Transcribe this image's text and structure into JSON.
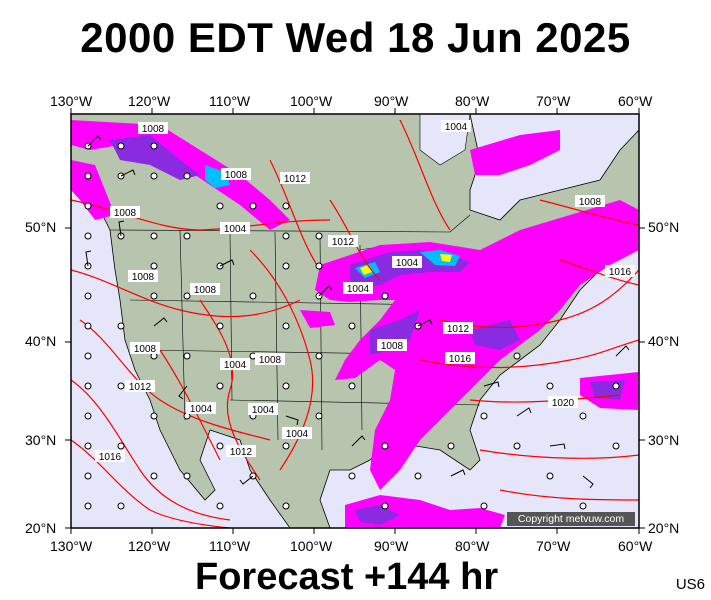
{
  "header": {
    "title": "2000 EDT Wed 18 Jun 2025"
  },
  "footer": {
    "forecast": "Forecast +144 hr",
    "region": "US6"
  },
  "map": {
    "lon_labels": [
      "130°W",
      "120°W",
      "110°W",
      "100°W",
      "90°W",
      "80°W",
      "70°W",
      "60°W"
    ],
    "lat_labels": [
      "50°N",
      "40°N",
      "30°N",
      "20°N"
    ],
    "isobar_labels": [
      "1008",
      "1008",
      "1012",
      "1004",
      "1004",
      "1008",
      "1008",
      "1004",
      "1012",
      "1008",
      "1016",
      "1016",
      "1008",
      "1004",
      "1008",
      "1012",
      "1008",
      "1004",
      "1016",
      "1020",
      "1004",
      "1012",
      "1008",
      "1004",
      "1012",
      "1004"
    ],
    "copyright": "Copyright metvuw.com",
    "colors": {
      "ocean": "#e6e6fa",
      "land": "#b9c6b0",
      "isobar": "#ff0000",
      "precip_light": "#ff00ff",
      "precip_medium": "#8a2be2",
      "precip_heavy": "#00bfff"
    }
  }
}
